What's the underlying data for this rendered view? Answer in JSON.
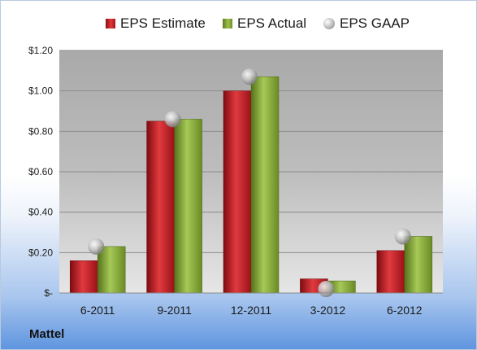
{
  "company": "Mattel",
  "legend": [
    {
      "key": "est",
      "label": "EPS Estimate"
    },
    {
      "key": "act",
      "label": "EPS Actual"
    },
    {
      "key": "gaap",
      "label": "EPS GAAP"
    }
  ],
  "colors": {
    "estimate": "#c8282d",
    "actual": "#8fb43a",
    "gaap": "#b5b5b5",
    "plot_bg": "#b2b2b2"
  },
  "chart_data": {
    "type": "bar",
    "categories": [
      "6-2011",
      "9-2011",
      "12-2011",
      "3-2012",
      "6-2012"
    ],
    "series": [
      {
        "name": "EPS Estimate",
        "values": [
          0.16,
          0.85,
          1.0,
          0.07,
          0.21
        ]
      },
      {
        "name": "EPS Actual",
        "values": [
          0.23,
          0.86,
          1.07,
          0.06,
          0.28
        ]
      },
      {
        "name": "EPS GAAP",
        "type": "scatter",
        "values": [
          0.23,
          0.86,
          1.07,
          0.02,
          0.28
        ]
      }
    ],
    "y_ticks": [
      {
        "value": 0,
        "label": "$-"
      },
      {
        "value": 0.2,
        "label": "$0.20"
      },
      {
        "value": 0.4,
        "label": "$0.40"
      },
      {
        "value": 0.6,
        "label": "$0.60"
      },
      {
        "value": 0.8,
        "label": "$0.80"
      },
      {
        "value": 1.0,
        "label": "$1.00"
      },
      {
        "value": 1.2,
        "label": "$1.20"
      }
    ],
    "ylim": [
      0,
      1.2
    ],
    "grid": true,
    "legend_position": "top"
  }
}
